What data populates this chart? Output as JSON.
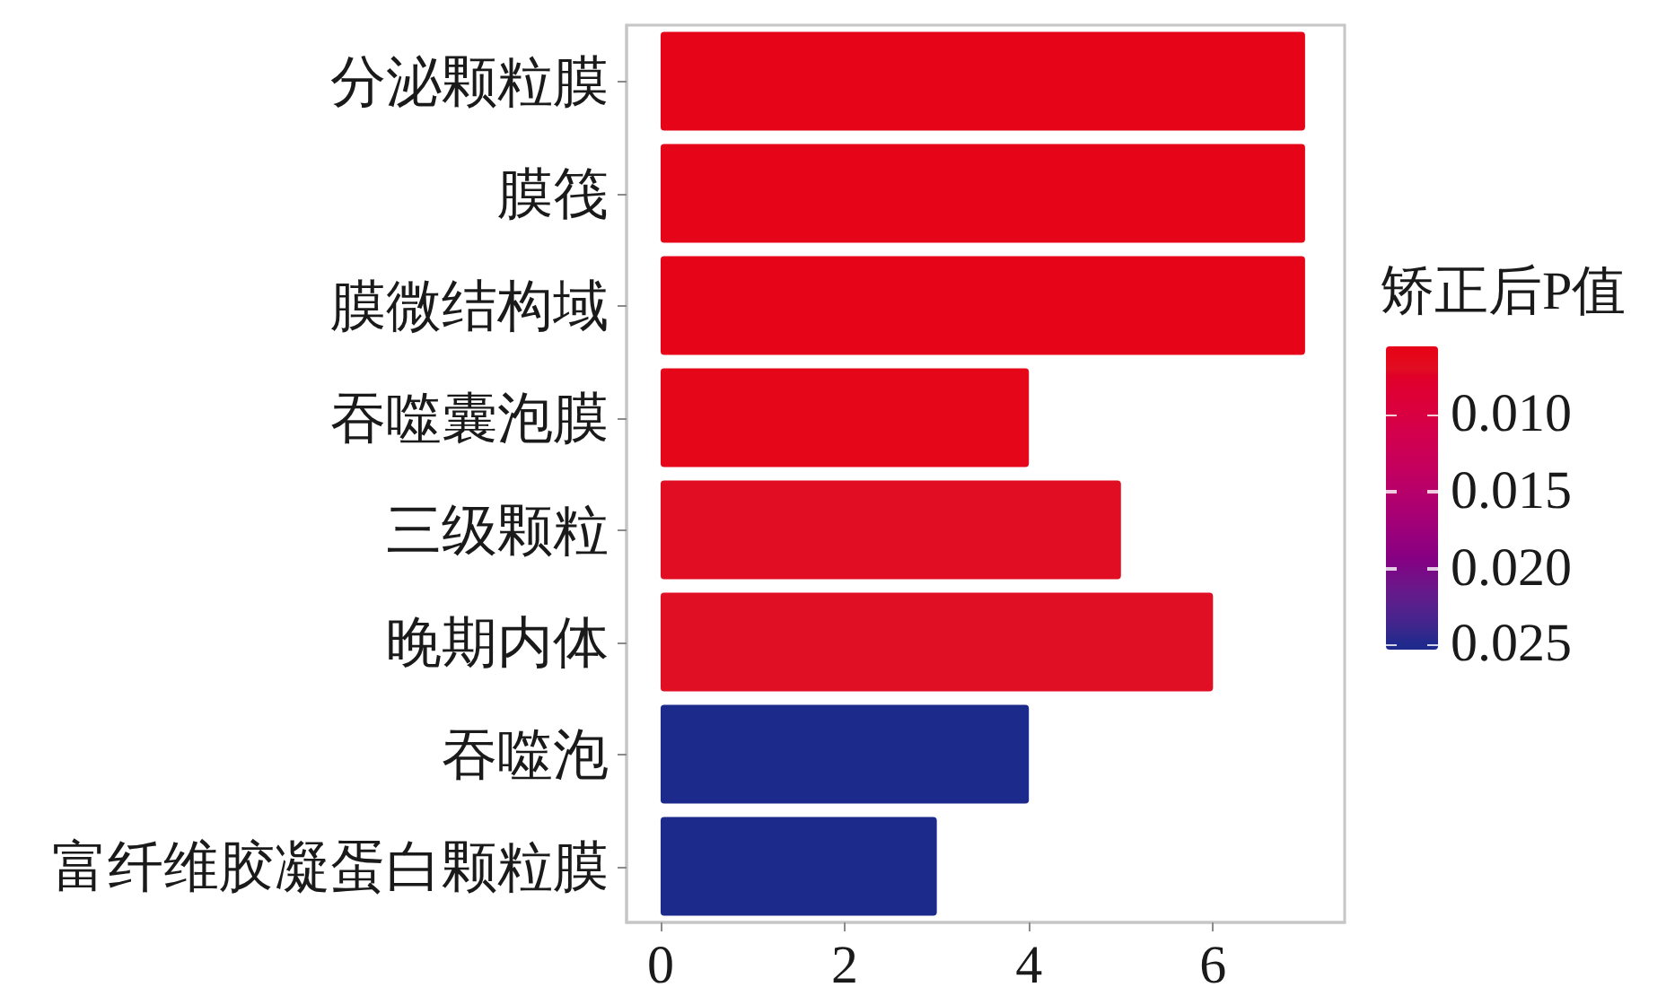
{
  "chart_data": {
    "type": "bar",
    "orientation": "horizontal",
    "categories": [
      "分泌颗粒膜",
      "膜筏",
      "膜微结构域",
      "吞噬囊泡膜",
      "三级颗粒",
      "晚期内体",
      "吞噬泡",
      "富纤维胶凝蛋白颗粒膜"
    ],
    "values": [
      7,
      7,
      7,
      4,
      5,
      6,
      4,
      3
    ],
    "colors": [
      "#e60518",
      "#e60518",
      "#e60518",
      "#e60619",
      "#e10d22",
      "#e10f24",
      "#1c2a8c",
      "#1c2a8c"
    ],
    "cvalues": [
      0.006,
      0.006,
      0.006,
      0.006,
      0.007,
      0.007,
      0.025,
      0.025
    ],
    "clabel": "矫正后P值",
    "clim": [
      0.0253,
      0.0055
    ],
    "cticks": [
      {
        "value": 0.01,
        "label": "0.010"
      },
      0.015,
      {
        "value": 0.02,
        "label": "0.020"
      },
      0.025
    ],
    "xlim": [
      -0.37,
      7.43
    ],
    "xticks": [
      0,
      2,
      4,
      6
    ],
    "grid": false
  }
}
